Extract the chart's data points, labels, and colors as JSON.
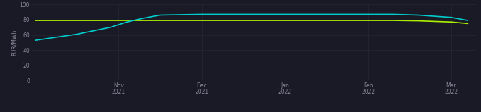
{
  "background_color": "#1a1a26",
  "ylabel": "EUR/MWh",
  "ylim": [
    0,
    100
  ],
  "yticks": [
    0,
    20,
    40,
    60,
    80,
    100
  ],
  "xtick_labels": [
    "Nov\n2021",
    "Dec\n2021",
    "Jan\n2022",
    "Feb\n2022",
    "Mar\n2022"
  ],
  "xtick_positions": [
    1,
    2,
    3,
    4,
    5
  ],
  "xlim": [
    -0.05,
    5.3
  ],
  "line_ttf": {
    "color": "#aaee00",
    "linewidth": 1.2
  },
  "line_jkm": {
    "color": "#00cccc",
    "linewidth": 1.2
  },
  "ttf_x": [
    0,
    0.5,
    1.0,
    1.5,
    2.0,
    2.5,
    3.0,
    3.5,
    4.0,
    4.3,
    4.6,
    5.0,
    5.2
  ],
  "ttf_y": [
    79,
    79,
    79,
    79,
    79,
    79,
    79,
    79,
    79,
    79,
    78.5,
    77,
    75
  ],
  "jkm_x": [
    0,
    0.5,
    0.9,
    1.1,
    1.3,
    1.5,
    2.0,
    2.5,
    3.0,
    3.5,
    4.0,
    4.3,
    4.6,
    5.0,
    5.2
  ],
  "jkm_y": [
    53,
    61,
    70,
    77,
    82,
    86,
    87,
    87,
    87,
    87,
    87,
    87,
    86,
    83,
    79
  ],
  "grid_color": "#2a2a3a",
  "tick_color": "#888899",
  "label_fontsize": 5.5,
  "tick_fontsize": 5.5
}
